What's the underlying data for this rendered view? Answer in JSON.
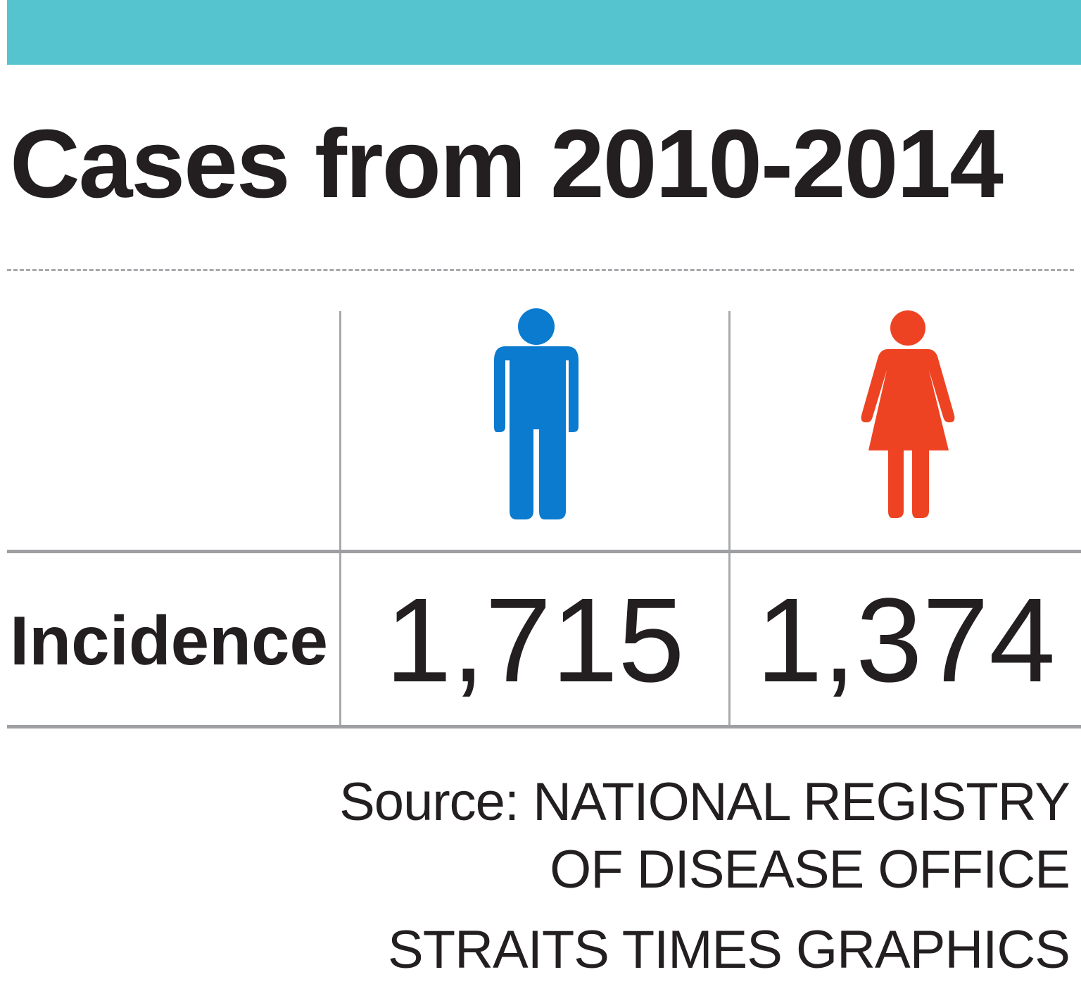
{
  "colors": {
    "accent_bar": "#56c4cf",
    "male": "#0a7bce",
    "female": "#ee4323",
    "text": "#231f20",
    "rule": "#9d9fa2"
  },
  "title": "Cases from 2010-2014",
  "table": {
    "columns": [
      {
        "icon": "male-figure-icon",
        "color": "#0a7bce"
      },
      {
        "icon": "female-figure-icon",
        "color": "#ee4323"
      }
    ],
    "row_label": "Incidence",
    "values": [
      "1,715",
      "1,374"
    ]
  },
  "source": {
    "line1": "Source: NATIONAL REGISTRY",
    "line2": "OF DISEASE OFFICE"
  },
  "credit": "STRAITS TIMES GRAPHICS",
  "chart_data": {
    "type": "table",
    "title": "Cases from 2010-2014",
    "categories": [
      "male",
      "female"
    ],
    "rows": [
      {
        "label": "Incidence",
        "values": [
          1715,
          1374
        ]
      }
    ]
  }
}
